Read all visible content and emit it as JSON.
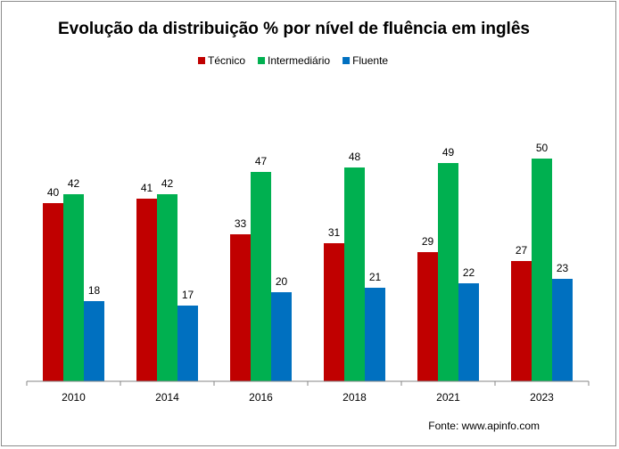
{
  "chart_data": {
    "type": "bar",
    "title": "Evolução da distribuição  % por nível de fluência em inglês",
    "categories": [
      "2010",
      "2014",
      "2016",
      "2018",
      "2021",
      "2023"
    ],
    "series": [
      {
        "name": "Técnico",
        "color": "#c00000",
        "values": [
          40,
          41,
          33,
          31,
          29,
          27
        ]
      },
      {
        "name": "Intermediário",
        "color": "#00b050",
        "values": [
          42,
          42,
          47,
          48,
          49,
          50
        ]
      },
      {
        "name": "Fluente",
        "color": "#0070c0",
        "values": [
          18,
          17,
          20,
          21,
          22,
          23
        ]
      }
    ],
    "ylim": [
      0,
      60
    ],
    "grid": false,
    "legend_position": "top",
    "source": "Fonte: www.apinfo.com"
  }
}
